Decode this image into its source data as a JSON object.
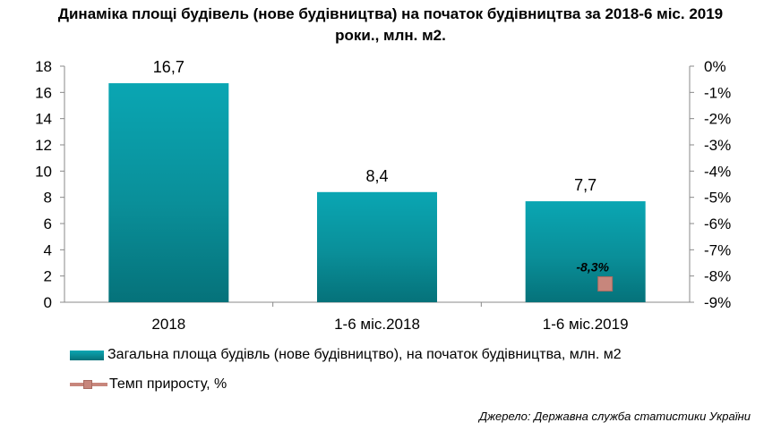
{
  "title_line1": "Динаміка площі будівель (нове будівництва) на початок будівництва за 2018-6 міс. 2019",
  "title_line2": "роки., млн. м2.",
  "legend": {
    "bar_label": "Загальна площа будівль (нове будівництво), на початок будівництва, млн. м2",
    "line_label": "Темп приросту, %"
  },
  "source": "Джерело: Державна служба статистики України",
  "colors": {
    "bar_top": "#0aa6b3",
    "bar_bottom": "#057078",
    "marker": "#c7867c"
  },
  "chart_data": {
    "type": "bar",
    "categories": [
      "2018",
      "1-6 міс.2018",
      "1-6 міс.2019"
    ],
    "series": [
      {
        "name": "Загальна площа будівль (нове будівництво), на початок будівництва, млн. м2",
        "axis": "left",
        "values": [
          16.7,
          8.4,
          7.7
        ],
        "data_labels": [
          "16,7",
          "8,4",
          "7,7"
        ]
      },
      {
        "name": "Темп приросту, %",
        "axis": "right",
        "type": "line",
        "values": [
          null,
          null,
          -8.3
        ],
        "data_labels": [
          null,
          null,
          "-8,3%"
        ]
      }
    ],
    "ylim_left": [
      0,
      18
    ],
    "yticks_left": [
      "0",
      "2",
      "4",
      "6",
      "8",
      "10",
      "12",
      "14",
      "16",
      "18"
    ],
    "ylim_right": [
      -9,
      0
    ],
    "yticks_right": [
      "-9%",
      "-8%",
      "-7%",
      "-6%",
      "-5%",
      "-4%",
      "-3%",
      "-2%",
      "-1%",
      "0%"
    ],
    "grid": false,
    "legend_position": "bottom-left"
  }
}
